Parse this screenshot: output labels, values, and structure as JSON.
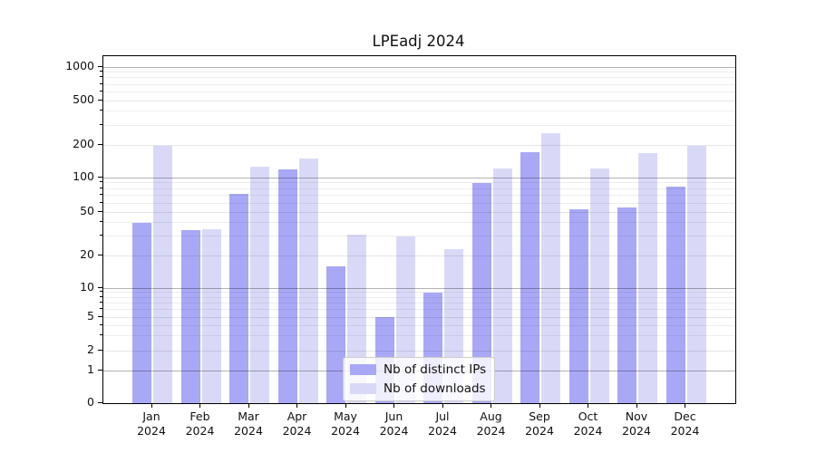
{
  "chart_data": {
    "type": "bar",
    "title": "LPEadj 2024",
    "scale": "log-like (ticks 0,1,2,5,10,20,50,100,200,500,1000)",
    "legend_position": "bottom-center",
    "grid": true,
    "x_ticks": [
      {
        "month": "Jan",
        "year": "2024"
      },
      {
        "month": "Feb",
        "year": "2024"
      },
      {
        "month": "Mar",
        "year": "2024"
      },
      {
        "month": "Apr",
        "year": "2024"
      },
      {
        "month": "May",
        "year": "2024"
      },
      {
        "month": "Jun",
        "year": "2024"
      },
      {
        "month": "Jul",
        "year": "2024"
      },
      {
        "month": "Aug",
        "year": "2024"
      },
      {
        "month": "Sep",
        "year": "2024"
      },
      {
        "month": "Oct",
        "year": "2024"
      },
      {
        "month": "Nov",
        "year": "2024"
      },
      {
        "month": "Dec",
        "year": "2024"
      }
    ],
    "y_ticks": [
      {
        "value": 0,
        "label": "0"
      },
      {
        "value": 1,
        "label": "1"
      },
      {
        "value": 2,
        "label": "2"
      },
      {
        "value": 5,
        "label": "5"
      },
      {
        "value": 10,
        "label": "10"
      },
      {
        "value": 20,
        "label": "20"
      },
      {
        "value": 50,
        "label": "50"
      },
      {
        "value": 100,
        "label": "100"
      },
      {
        "value": 200,
        "label": "200"
      },
      {
        "value": 500,
        "label": "500"
      },
      {
        "value": 1000,
        "label": "1000"
      }
    ],
    "series": [
      {
        "name": "Nb of distinct IPs",
        "color": "#a8a8f6",
        "values": [
          40,
          34,
          72,
          119,
          16,
          5,
          9,
          90,
          170,
          53,
          55,
          84
        ]
      },
      {
        "name": "Nb of downloads",
        "color": "#d9d9f7",
        "values": [
          197,
          35,
          126,
          151,
          31,
          30,
          23,
          122,
          255,
          122,
          168,
          197
        ]
      }
    ]
  }
}
